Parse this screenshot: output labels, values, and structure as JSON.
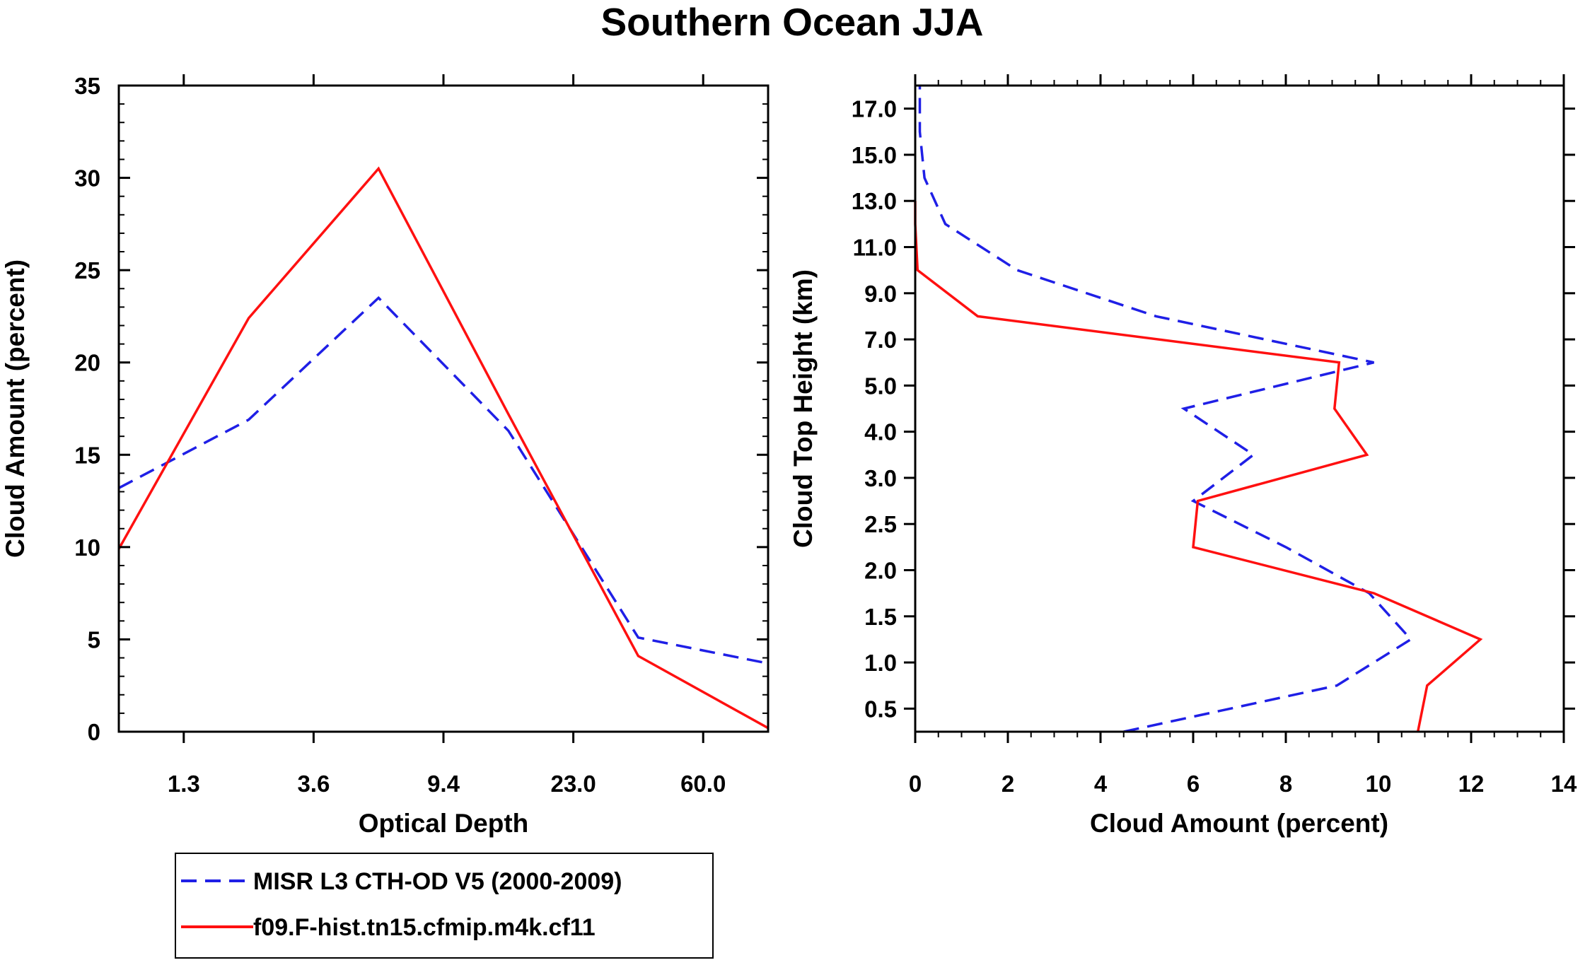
{
  "title": "Southern Ocean JJA",
  "colors": {
    "obs": "#1f1fe6",
    "model": "#ff1010",
    "axis": "#000000"
  },
  "chart_data": [
    {
      "type": "line",
      "id": "left",
      "xlabel": "Optical Depth",
      "ylabel": "Cloud Amount (percent)",
      "xlim": [
        0,
        5
      ],
      "ylim": [
        0,
        35
      ],
      "x_tick_positions": [
        0.5,
        1.5,
        2.5,
        3.5,
        4.5
      ],
      "x_tick_labels": [
        "1.3",
        "3.6",
        "9.4",
        "23.0",
        "60.0"
      ],
      "y_ticks": [
        0,
        5,
        10,
        15,
        20,
        25,
        30,
        35
      ],
      "y_tick_labels": [
        "0",
        "5",
        "10",
        "15",
        "20",
        "25",
        "30",
        "35"
      ],
      "x": [
        0,
        1,
        2,
        3,
        4,
        5
      ],
      "series": [
        {
          "name": "MISR L3 CTH-OD V5 (2000-2009)",
          "color": "#1f1fe6",
          "dashed": true,
          "values": [
            13.2,
            16.9,
            23.5,
            16.3,
            5.1,
            3.7
          ]
        },
        {
          "name": "f09.F-hist.tn15.cfmip.m4k.cf11",
          "color": "#ff1010",
          "dashed": false,
          "values": [
            9.9,
            22.4,
            30.5,
            17.2,
            4.1,
            0.2
          ]
        }
      ]
    },
    {
      "type": "line",
      "id": "right",
      "xlabel": "Cloud Amount (percent)",
      "ylabel": "Cloud Top Height (km)",
      "xlim": [
        0,
        14
      ],
      "x_ticks": [
        0,
        2,
        4,
        6,
        8,
        10,
        12,
        14
      ],
      "x_tick_labels": [
        "0",
        "2",
        "4",
        "6",
        "8",
        "10",
        "12",
        "14"
      ],
      "y_index_range": [
        0,
        14
      ],
      "y_tick_positions": [
        0.5,
        1.5,
        2.5,
        3.5,
        4.5,
        5.5,
        6.5,
        7.5,
        8.5,
        9.5,
        10.5,
        11.5,
        12.5,
        13.5
      ],
      "y_tick_labels": [
        "0.5",
        "1.0",
        "1.5",
        "2.0",
        "2.5",
        "3.0",
        "4.0",
        "5.0",
        "7.0",
        "9.0",
        "11.0",
        "13.0",
        "15.0",
        "17.0"
      ],
      "series": [
        {
          "name": "MISR L3 CTH-OD V5 (2000-2009)",
          "color": "#1f1fe6",
          "dashed": true,
          "x": [
            4.5,
            9.1,
            10.7,
            9.8,
            8.0,
            6.0,
            7.3,
            5.8,
            9.9,
            5.2,
            2.2,
            0.65,
            0.2,
            0.1,
            0.1
          ],
          "y": [
            0,
            1,
            2,
            3,
            4,
            5,
            6,
            7,
            8,
            9,
            10,
            11,
            12,
            13,
            14
          ]
        },
        {
          "name": "f09.F-hist.tn15.cfmip.m4k.cf11",
          "color": "#ff1010",
          "dashed": false,
          "x": [
            10.85,
            11.05,
            12.2,
            9.9,
            6.0,
            6.1,
            9.75,
            9.05,
            9.15,
            1.35,
            0.05,
            0.0,
            0.0
          ],
          "y": [
            0,
            1,
            2,
            3,
            4,
            5,
            6,
            7,
            8,
            9,
            10,
            11,
            11.5
          ]
        }
      ]
    }
  ],
  "legend": [
    {
      "label": "MISR L3 CTH-OD V5 (2000-2009)",
      "color": "#1f1fe6",
      "dashed": true
    },
    {
      "label": "f09.F-hist.tn15.cfmip.m4k.cf11",
      "color": "#ff1010",
      "dashed": false
    }
  ]
}
